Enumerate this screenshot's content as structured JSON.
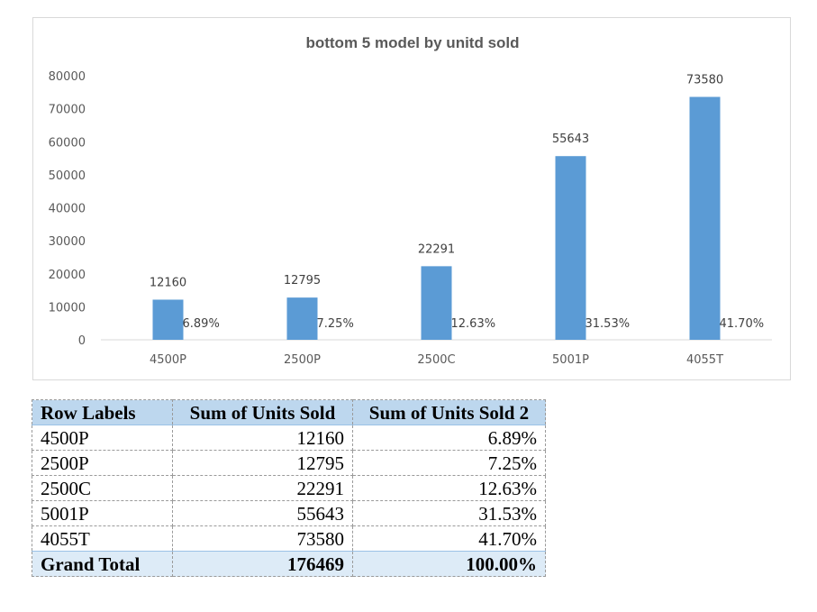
{
  "chart_data": {
    "type": "bar",
    "title": "bottom 5 model by unitd sold",
    "xlabel": "",
    "ylabel": "",
    "categories": [
      "4500P",
      "2500P",
      "2500C",
      "5001P",
      "4055T"
    ],
    "series": [
      {
        "values": [
          12160,
          12795,
          22291,
          55643,
          73580
        ]
      }
    ],
    "percent_labels": [
      "6.89%",
      "7.25%",
      "12.63%",
      "31.53%",
      "41.70%"
    ],
    "yticks": [
      "0",
      "10000",
      "20000",
      "30000",
      "40000",
      "50000",
      "60000",
      "70000",
      "80000"
    ],
    "ylim": [
      0,
      80000
    ],
    "grid": false,
    "legend": "none",
    "bar_color": "#5b9bd5"
  },
  "table": {
    "headers": [
      "Row Labels",
      "Sum of Units Sold",
      "Sum of Units Sold 2"
    ],
    "rows": [
      {
        "label": "4500P",
        "units": "12160",
        "pct": "6.89%"
      },
      {
        "label": "2500P",
        "units": "12795",
        "pct": "7.25%"
      },
      {
        "label": "2500C",
        "units": "22291",
        "pct": "12.63%"
      },
      {
        "label": "5001P",
        "units": "55643",
        "pct": "31.53%"
      },
      {
        "label": "4055T",
        "units": "73580",
        "pct": "41.70%"
      }
    ],
    "total": {
      "label": "Grand Total",
      "units": "176469",
      "pct": "100.00%"
    },
    "header_color": "#bdd7ee",
    "total_color": "#ddebf7"
  }
}
